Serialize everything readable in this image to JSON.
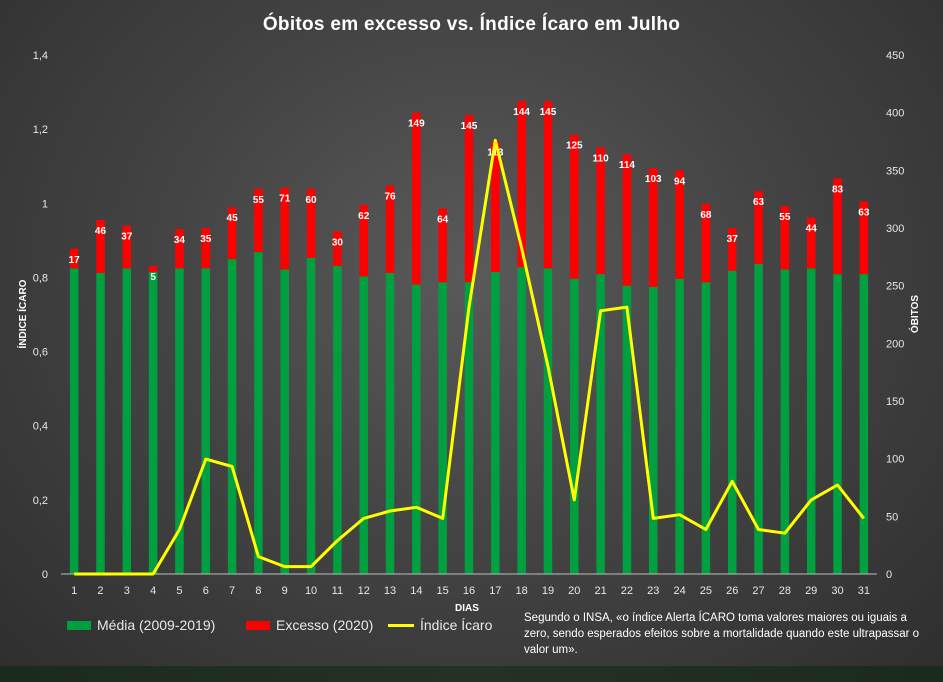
{
  "chart_data": {
    "type": "bar",
    "title": "Óbitos  em excesso  vs.  Índice  Ícaro  em Julho",
    "xlabel": "DIAS",
    "ylabel": "ÍNDICE ÍCARO",
    "y2label": "ÓBITOS",
    "ylim": [
      0,
      1.4
    ],
    "y2lim": [
      0,
      450
    ],
    "yticks": [
      "0",
      "0,2",
      "0,4",
      "0,6",
      "0,8",
      "1",
      "1,2",
      "1,4"
    ],
    "y2ticks": [
      "0",
      "50",
      "100",
      "150",
      "200",
      "250",
      "300",
      "350",
      "400",
      "450"
    ],
    "categories": [
      "1",
      "2",
      "3",
      "4",
      "5",
      "6",
      "7",
      "8",
      "9",
      "10",
      "11",
      "12",
      "13",
      "14",
      "15",
      "16",
      "17",
      "18",
      "19",
      "20",
      "21",
      "22",
      "23",
      "24",
      "25",
      "26",
      "27",
      "28",
      "29",
      "30",
      "31"
    ],
    "series": [
      {
        "name": "Média (2009-2019)",
        "color": "#00a040",
        "values": [
          265,
          261,
          265,
          262,
          265,
          265,
          273,
          279,
          264,
          274,
          267,
          258,
          261,
          251,
          253,
          253,
          262,
          266,
          265,
          256,
          260,
          250,
          249,
          256,
          253,
          263,
          269,
          264,
          265,
          260,
          260
        ]
      },
      {
        "name": "Excesso (2020)",
        "color": "#ff0000",
        "values": [
          17,
          46,
          37,
          5,
          34,
          35,
          45,
          55,
          71,
          60,
          30,
          62,
          76,
          149,
          64,
          145,
          113,
          144,
          145,
          125,
          110,
          114,
          103,
          94,
          68,
          37,
          63,
          55,
          44,
          83,
          63
        ],
        "labels": [
          "17",
          "46",
          "37",
          "5",
          "34",
          "35",
          "45",
          "55",
          "71",
          "60",
          "30",
          "62",
          "76",
          "149",
          "64",
          "145",
          "113",
          "144",
          "145",
          "125",
          "110",
          "114",
          "103",
          "94",
          "68",
          "37",
          "63",
          "55",
          "44",
          "83",
          "63"
        ]
      },
      {
        "name": "Índice Ícaro",
        "type": "line",
        "color": "#ffff00",
        "values": [
          0,
          0,
          0,
          0,
          0.12,
          0.31,
          0.29,
          0.047,
          0.02,
          0.02,
          0.09,
          0.15,
          0.17,
          0.18,
          0.15,
          0.72,
          1.17,
          0.88,
          0.56,
          0.2,
          0.71,
          0.72,
          0.15,
          0.16,
          0.12,
          0.25,
          0.12,
          0.11,
          0.2,
          0.24,
          0.15
        ]
      }
    ],
    "legend": [
      {
        "label": "Média (2009-2019)",
        "color": "#00a040"
      },
      {
        "label": "Excesso (2020)",
        "color": "#ff0000"
      },
      {
        "label": "Índice Ícaro",
        "color": "#ffff00"
      }
    ],
    "legend_position": "bottom",
    "gridlines": false
  },
  "note": "Segundo o INSA, «o índice Alerta ÍCARO toma valores maiores ou iguais a zero, sendo esperados efeitos sobre a mortalidade quando este ultrapassar o valor um»."
}
